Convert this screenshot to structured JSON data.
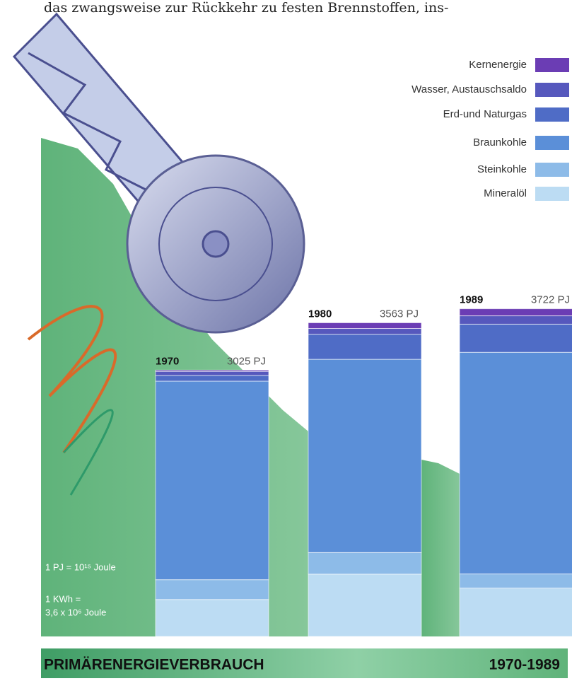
{
  "intro_text": "das zwangsweise zur Rückkehr zu festen Brennstoffen, ins-",
  "chart_data": {
    "type": "stacked-bar",
    "title": "PRIMÄRENERGIEVERBRAUCH",
    "subtitle": "1970-1989",
    "categories": [
      "1970",
      "1980",
      "1989"
    ],
    "totals": {
      "values": [
        3025,
        3563,
        3722
      ],
      "value_labels": [
        "3025 PJ",
        "3563 PJ",
        "3722 PJ"
      ]
    },
    "series": [
      {
        "name": "Kernenergie",
        "color": "#6b3db4",
        "values": [
          15,
          65,
          80
        ]
      },
      {
        "name": "Wasser, Austauschsaldo",
        "color": "#5658bd",
        "values": [
          45,
          65,
          95
        ]
      },
      {
        "name": "Erd-und Naturgas",
        "color": "#4f6cc6",
        "values": [
          65,
          285,
          320
        ]
      },
      {
        "name": "Braunkohle",
        "color": "#5b8fd8",
        "values": [
          2255,
          2195,
          2517
        ]
      },
      {
        "name": "Steinkohle",
        "color": "#8dbbe8",
        "values": [
          225,
          245,
          160
        ]
      },
      {
        "name": "Mineralöl",
        "color": "#bcdcf3",
        "values": [
          420,
          708,
          550
        ]
      }
    ],
    "notes": [
      "1 PJ = 10¹⁵ Joule",
      "1 KWh =",
      "3,6 x 10⁶ Joule"
    ]
  }
}
